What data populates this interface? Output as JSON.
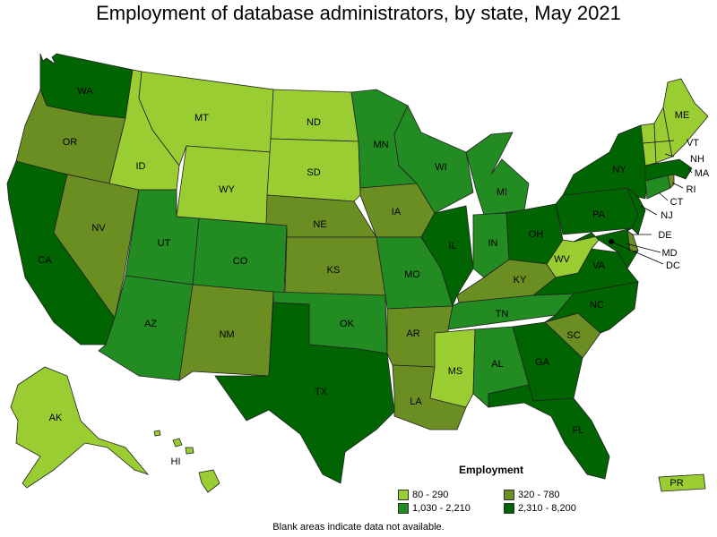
{
  "title": "Employment of database administrators, by state, May 2021",
  "legend": {
    "title": "Employment",
    "items": [
      {
        "label": "80 - 290",
        "color": "#9acd32"
      },
      {
        "label": "320 - 780",
        "color": "#6b8e23"
      },
      {
        "label": "1,030 - 2,210",
        "color": "#228b22"
      },
      {
        "label": "2,310 - 8,200",
        "color": "#006400"
      }
    ]
  },
  "footnote": "Blank areas indicate data not available.",
  "states": {
    "WA": "2,310 - 8,200",
    "OR": "320 - 780",
    "CA": "2,310 - 8,200",
    "NV": "320 - 780",
    "ID": "80 - 290",
    "MT": "80 - 290",
    "WY": "80 - 290",
    "UT": "1,030 - 2,210",
    "AZ": "1,030 - 2,210",
    "CO": "1,030 - 2,210",
    "NM": "320 - 780",
    "ND": "80 - 290",
    "SD": "80 - 290",
    "NE": "320 - 780",
    "KS": "320 - 780",
    "OK": "1,030 - 2,210",
    "TX": "2,310 - 8,200",
    "MN": "1,030 - 2,210",
    "IA": "320 - 780",
    "MO": "1,030 - 2,210",
    "AR": "320 - 780",
    "LA": "320 - 780",
    "WI": "1,030 - 2,210",
    "IL": "2,310 - 8,200",
    "MI": "1,030 - 2,210",
    "IN": "1,030 - 2,210",
    "OH": "2,310 - 8,200",
    "KY": "320 - 780",
    "TN": "1,030 - 2,210",
    "MS": "80 - 290",
    "AL": "1,030 - 2,210",
    "GA": "2,310 - 8,200",
    "FL": "2,310 - 8,200",
    "SC": "320 - 780",
    "NC": "2,310 - 8,200",
    "VA": "2,310 - 8,200",
    "WV": "80 - 290",
    "PA": "2,310 - 8,200",
    "NY": "2,310 - 8,200",
    "NJ": "2,310 - 8,200",
    "DE": "320 - 780",
    "MD": "2,310 - 8,200",
    "DC": "2,310 - 8,200",
    "CT": "1,030 - 2,210",
    "RI": "320 - 780",
    "MA": "2,310 - 8,200",
    "VT": "80 - 290",
    "NH": "80 - 290",
    "ME": "80 - 290",
    "AK": "80 - 290",
    "HI": "80 - 290",
    "PR": "80 - 290"
  }
}
